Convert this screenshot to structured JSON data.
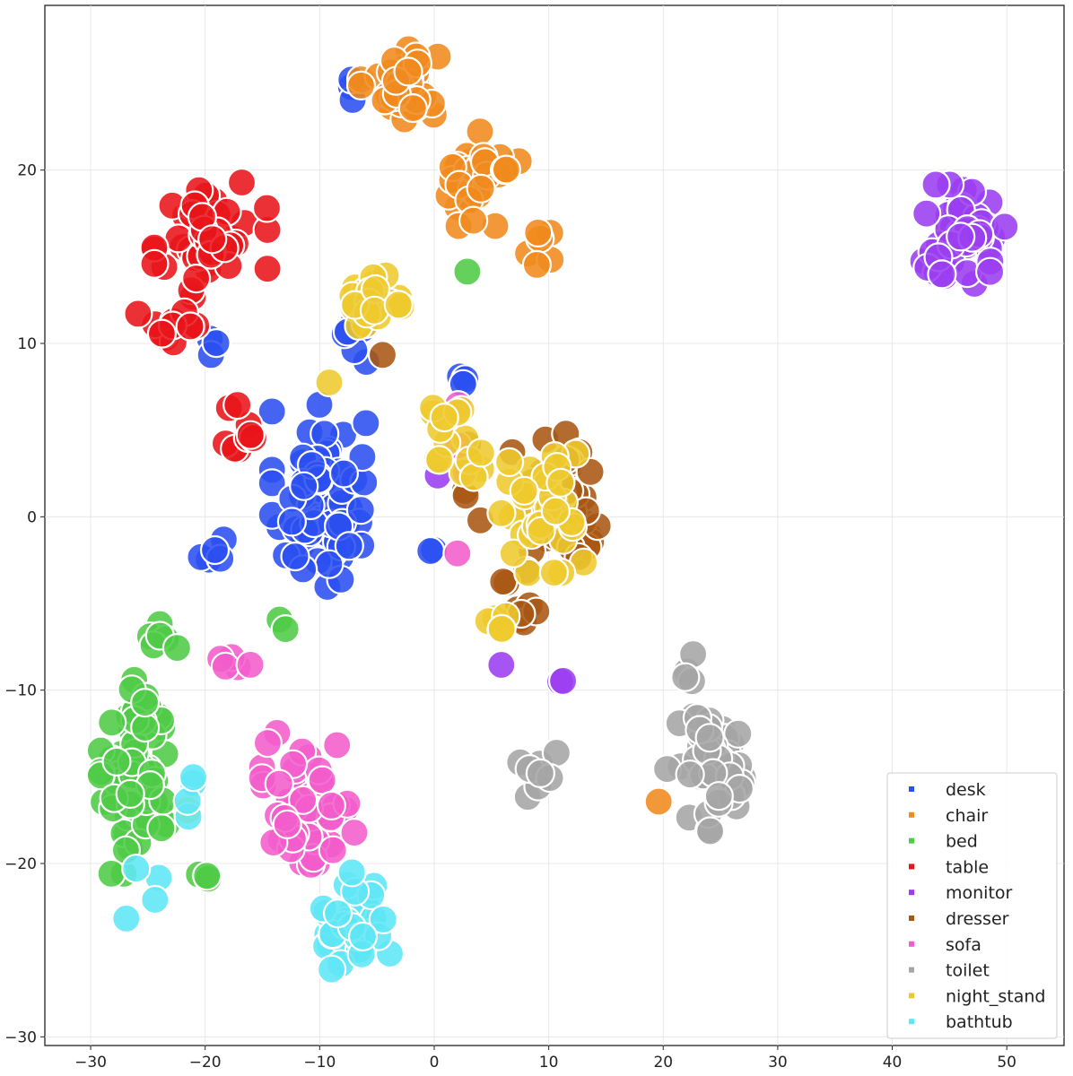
{
  "chart_data": {
    "type": "scatter",
    "title": "",
    "xlabel": "",
    "ylabel": "",
    "xlim": [
      -34,
      55
    ],
    "ylim": [
      -30.5,
      29.5
    ],
    "grid": true,
    "legend_position": "bottom-right",
    "x_ticks": [
      -30,
      -20,
      -10,
      0,
      10,
      20,
      30,
      40,
      50
    ],
    "x_tick_labels": [
      "−30",
      "−20",
      "−10",
      "0",
      "10",
      "20",
      "30",
      "40",
      "50"
    ],
    "y_ticks": [
      20,
      10,
      0,
      -10,
      -20,
      -30
    ],
    "y_tick_labels": [
      "20",
      "10",
      "0",
      "−10",
      "−20",
      "−30"
    ],
    "series": [
      {
        "name": "desk",
        "color": "#2b4ff0",
        "clusters": [
          {
            "cx": -10,
            "cy": 1,
            "sx": 3.2,
            "sy": 4.2,
            "n": 75
          },
          {
            "cx": -7,
            "cy": 10.5,
            "sx": 1.5,
            "sy": 1.8,
            "n": 6
          },
          {
            "cx": -20,
            "cy": -2,
            "sx": 2.0,
            "sy": 1.0,
            "n": 5
          },
          {
            "cx": -6.5,
            "cy": 24,
            "sx": 1.0,
            "sy": 1.5,
            "n": 3
          },
          {
            "cx": 2.5,
            "cy": 8,
            "sx": 1.0,
            "sy": 0.5,
            "n": 3
          },
          {
            "cx": 0,
            "cy": -2,
            "sx": 0.5,
            "sy": 0.5,
            "n": 2
          },
          {
            "cx": -19,
            "cy": 10,
            "sx": 1.0,
            "sy": 0.8,
            "n": 3
          }
        ]
      },
      {
        "name": "chair",
        "color": "#f08a1c",
        "clusters": [
          {
            "cx": -3,
            "cy": 25,
            "sx": 2.6,
            "sy": 1.6,
            "n": 40
          },
          {
            "cx": 4,
            "cy": 19.5,
            "sx": 2.6,
            "sy": 2.1,
            "n": 30
          },
          {
            "cx": 9.5,
            "cy": 15.5,
            "sx": 1.0,
            "sy": 1.2,
            "n": 6
          },
          {
            "cx": 19.5,
            "cy": -16.3,
            "sx": 0.3,
            "sy": 0.2,
            "n": 1
          }
        ]
      },
      {
        "name": "bed",
        "color": "#4fcb47",
        "clusters": [
          {
            "cx": -26,
            "cy": -15,
            "sx": 2.4,
            "sy": 4.3,
            "n": 80
          },
          {
            "cx": -24,
            "cy": -6.5,
            "sx": 1.2,
            "sy": 1.0,
            "n": 6
          },
          {
            "cx": -19.5,
            "cy": -20.8,
            "sx": 1.2,
            "sy": 0.3,
            "n": 3
          },
          {
            "cx": -13.5,
            "cy": -5.5,
            "sx": 0.5,
            "sy": 1.0,
            "n": 2
          },
          {
            "cx": 3,
            "cy": 14.3,
            "sx": 0.2,
            "sy": 0.2,
            "n": 1
          }
        ]
      },
      {
        "name": "table",
        "color": "#e8141a",
        "clusters": [
          {
            "cx": -19.5,
            "cy": 16,
            "sx": 3.8,
            "sy": 2.7,
            "n": 45
          },
          {
            "cx": -23,
            "cy": 11,
            "sx": 2.2,
            "sy": 1.5,
            "n": 14
          },
          {
            "cx": -16.5,
            "cy": 5,
            "sx": 1.5,
            "sy": 2.2,
            "n": 9
          }
        ]
      },
      {
        "name": "monitor",
        "color": "#9b3df0",
        "clusters": [
          {
            "cx": 46,
            "cy": 16.3,
            "sx": 3.3,
            "sy": 2.2,
            "n": 50
          },
          {
            "cx": 11,
            "cy": -9.3,
            "sx": 0.4,
            "sy": 0.4,
            "n": 2
          },
          {
            "cx": 0.5,
            "cy": 2.5,
            "sx": 0.3,
            "sy": 0.3,
            "n": 1
          },
          {
            "cx": 6,
            "cy": -8.5,
            "sx": 0.3,
            "sy": 0.3,
            "n": 1
          }
        ]
      },
      {
        "name": "dresser",
        "color": "#a85713",
        "clusters": [
          {
            "cx": 11.5,
            "cy": 0.5,
            "sx": 3.6,
            "sy": 3.3,
            "n": 45
          },
          {
            "cx": 7.5,
            "cy": -5.5,
            "sx": 1.3,
            "sy": 1.5,
            "n": 8
          },
          {
            "cx": 3,
            "cy": 2,
            "sx": 1.5,
            "sy": 3.0,
            "n": 5
          },
          {
            "cx": -4.5,
            "cy": 9,
            "sx": 0.3,
            "sy": 0.3,
            "n": 1
          }
        ]
      },
      {
        "name": "sofa",
        "color": "#f25ccb",
        "clusters": [
          {
            "cx": -11,
            "cy": -16.5,
            "sx": 3.1,
            "sy": 3.1,
            "n": 65
          },
          {
            "cx": -18,
            "cy": -8.5,
            "sx": 1.5,
            "sy": 0.5,
            "n": 5
          },
          {
            "cx": 2.5,
            "cy": 4.5,
            "sx": 1.0,
            "sy": 1.5,
            "n": 3
          },
          {
            "cx": 2,
            "cy": -2,
            "sx": 0.3,
            "sy": 0.3,
            "n": 1
          }
        ]
      },
      {
        "name": "toilet",
        "color": "#a5a5a5",
        "clusters": [
          {
            "cx": 24.5,
            "cy": -14.5,
            "sx": 3.2,
            "sy": 2.8,
            "n": 50
          },
          {
            "cx": 9,
            "cy": -14.5,
            "sx": 1.3,
            "sy": 1.4,
            "n": 8
          },
          {
            "cx": 22.5,
            "cy": -8.5,
            "sx": 0.8,
            "sy": 1.0,
            "n": 4
          }
        ]
      },
      {
        "name": "night_stand",
        "color": "#eec92e",
        "clusters": [
          {
            "cx": -5.5,
            "cy": 12.5,
            "sx": 2.3,
            "sy": 1.2,
            "n": 25
          },
          {
            "cx": 1.5,
            "cy": 4.5,
            "sx": 2.0,
            "sy": 1.8,
            "n": 15
          },
          {
            "cx": 9.5,
            "cy": 0,
            "sx": 3.3,
            "sy": 2.8,
            "n": 35
          },
          {
            "cx": 5.5,
            "cy": -6.2,
            "sx": 0.8,
            "sy": 0.6,
            "n": 5
          },
          {
            "cx": -9,
            "cy": 8,
            "sx": 0.3,
            "sy": 0.3,
            "n": 1
          },
          {
            "cx": -21.5,
            "cy": -17,
            "sx": 0.3,
            "sy": 0.3,
            "n": 1
          }
        ]
      },
      {
        "name": "bathtub",
        "color": "#5ee6f5",
        "clusters": [
          {
            "cx": -7,
            "cy": -23.5,
            "sx": 2.4,
            "sy": 2.3,
            "n": 40
          },
          {
            "cx": -20.5,
            "cy": -16,
            "sx": 1.0,
            "sy": 1.0,
            "n": 4
          },
          {
            "cx": -26,
            "cy": -21.5,
            "sx": 1.5,
            "sy": 1.5,
            "n": 4
          }
        ]
      }
    ]
  }
}
